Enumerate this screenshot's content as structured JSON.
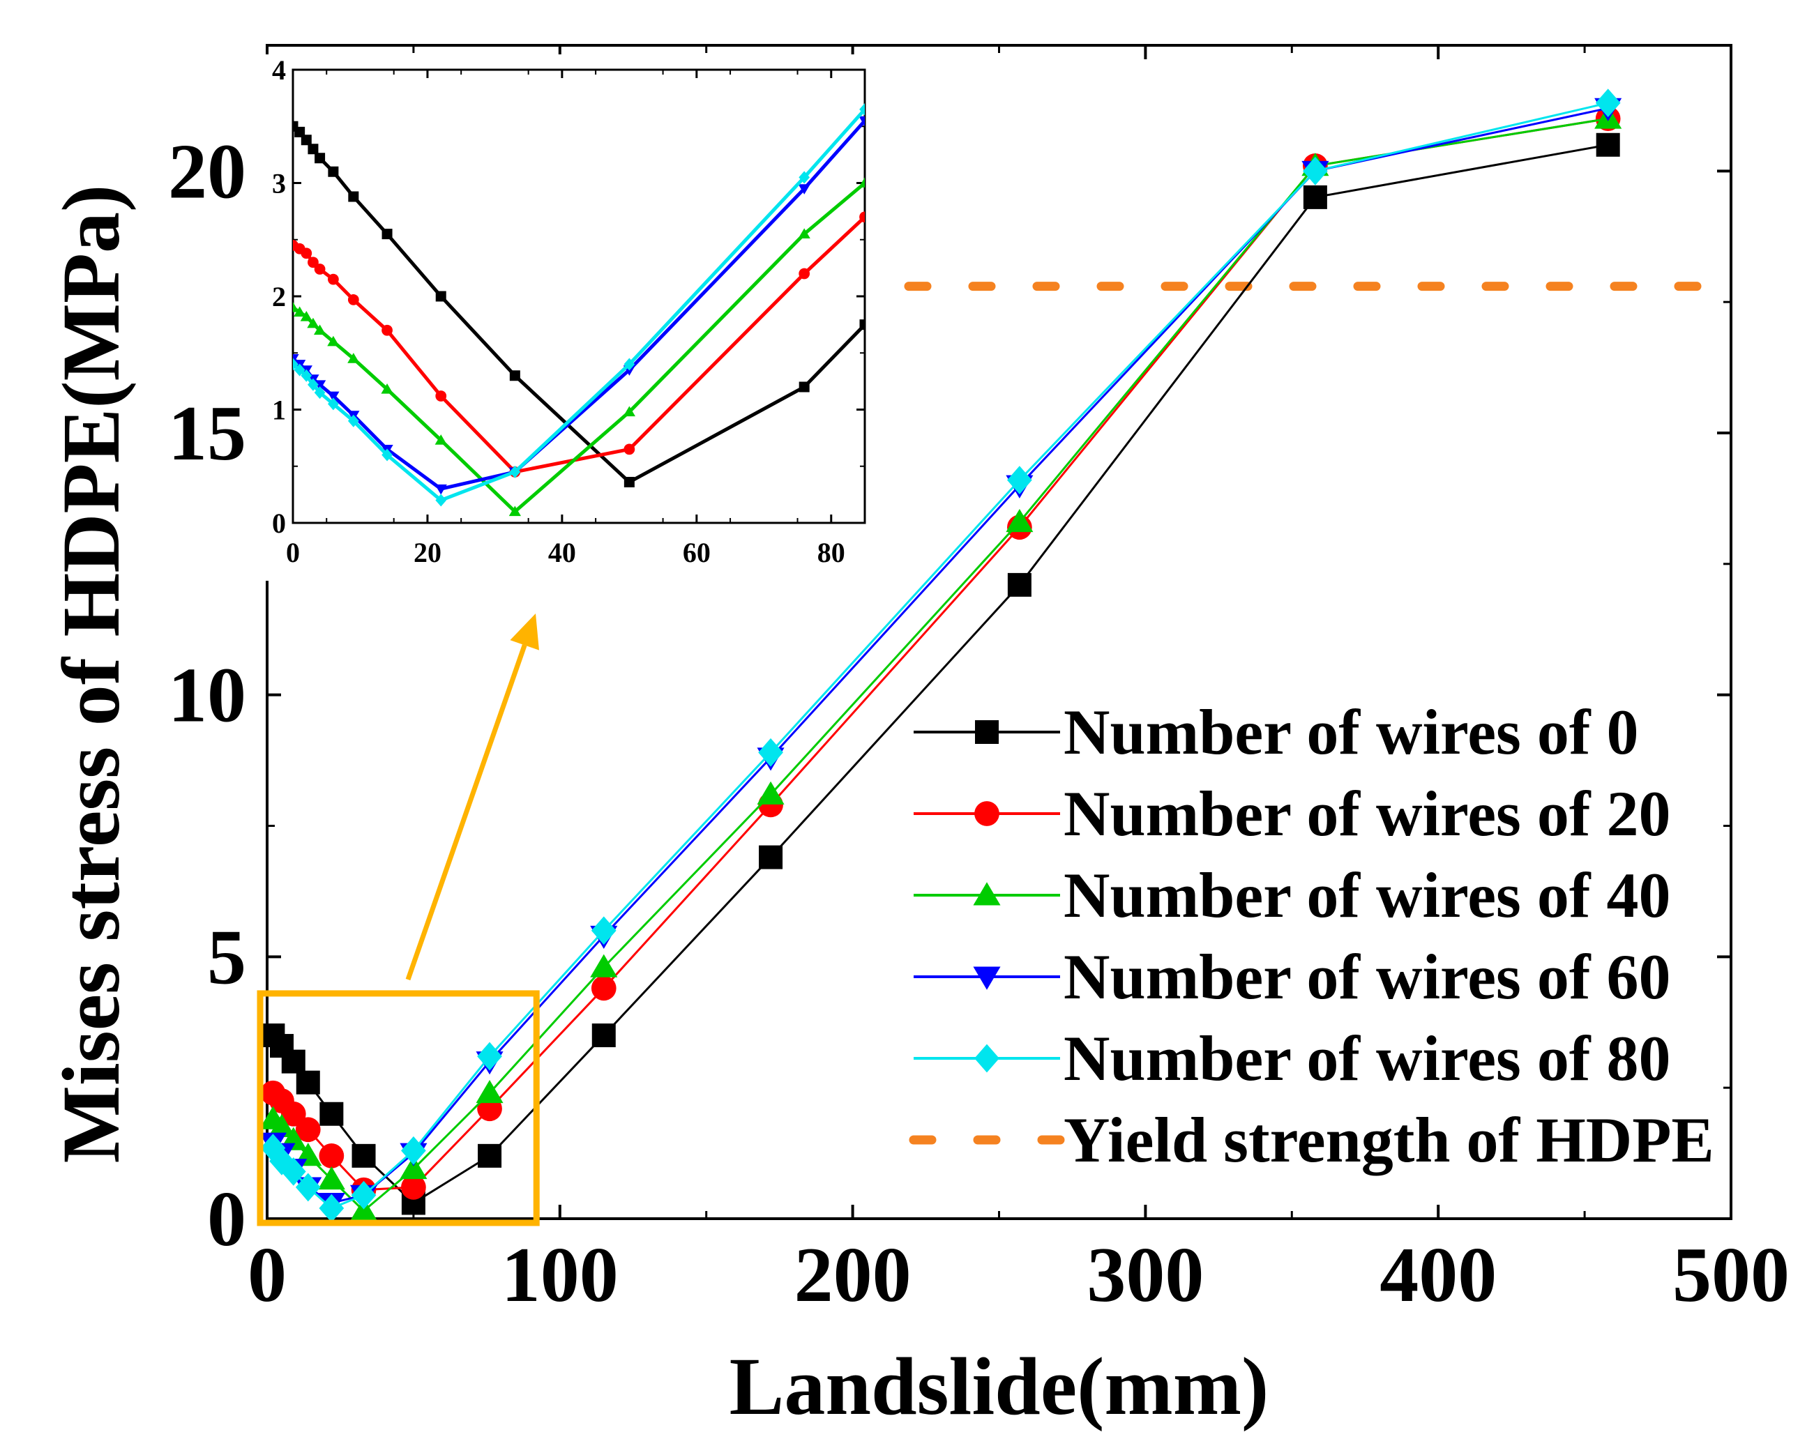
{
  "chart_data": [
    {
      "id": "main",
      "type": "line",
      "title": "",
      "xlabel": "Landslide(mm)",
      "ylabel": "Mises stress of HDPE(MPa)",
      "xlim": [
        0,
        500
      ],
      "ylim": [
        0,
        22.4
      ],
      "xticks": [
        0,
        100,
        200,
        300,
        400,
        500
      ],
      "yticks": [
        0,
        5,
        10,
        15,
        20
      ],
      "xtick_labels": [
        "0",
        "100",
        "200",
        "300",
        "400",
        "500"
      ],
      "ytick_labels": [
        "0",
        "5",
        "10",
        "15",
        "20"
      ],
      "legend_position": "center-right",
      "series": [
        {
          "name": "Number of wires of 0",
          "color": "#000000",
          "marker": "square",
          "x": [
            2,
            5,
            9,
            14,
            22,
            33,
            50,
            76,
            115,
            172,
            257,
            358,
            458
          ],
          "y": [
            3.5,
            3.3,
            3.0,
            2.6,
            2.0,
            1.2,
            0.3,
            1.2,
            3.5,
            6.9,
            12.1,
            19.5,
            20.5
          ]
        },
        {
          "name": "Number of wires of 20",
          "color": "#ff0000",
          "marker": "circle",
          "x": [
            2,
            5,
            9,
            14,
            22,
            33,
            50,
            76,
            115,
            172,
            257,
            358,
            458
          ],
          "y": [
            2.4,
            2.25,
            2.0,
            1.7,
            1.2,
            0.55,
            0.6,
            2.1,
            4.4,
            7.9,
            13.2,
            20.1,
            21.0
          ]
        },
        {
          "name": "Number of wires of 40",
          "color": "#00cc00",
          "marker": "triangle-up",
          "x": [
            2,
            5,
            9,
            14,
            22,
            33,
            50,
            76,
            115,
            172,
            257,
            358,
            458
          ],
          "y": [
            1.9,
            1.75,
            1.5,
            1.2,
            0.75,
            0.15,
            0.95,
            2.4,
            4.8,
            8.1,
            13.3,
            20.1,
            21.0
          ]
        },
        {
          "name": "Number of wires of 60",
          "color": "#0000ff",
          "marker": "triangle-down",
          "x": [
            2,
            5,
            9,
            14,
            22,
            33,
            50,
            76,
            115,
            172,
            257,
            358,
            458
          ],
          "y": [
            1.45,
            1.25,
            0.95,
            0.6,
            0.3,
            0.45,
            1.25,
            3.0,
            5.4,
            8.8,
            14.0,
            20.0,
            21.2
          ]
        },
        {
          "name": "Number of wires of 80",
          "color": "#00e5ee",
          "marker": "diamond",
          "x": [
            2,
            5,
            9,
            14,
            22,
            33,
            50,
            76,
            115,
            172,
            257,
            358,
            458
          ],
          "y": [
            1.35,
            1.1,
            0.9,
            0.6,
            0.2,
            0.45,
            1.3,
            3.1,
            5.5,
            8.9,
            14.1,
            20.0,
            21.3
          ]
        }
      ],
      "reference_lines": [
        {
          "name": "Yield strength of HDPE",
          "color": "#f58220",
          "style": "dashed",
          "y": 17.8
        }
      ],
      "annotations": [
        {
          "type": "highlight-box",
          "color": "#ffb300",
          "x_range": [
            0,
            92
          ],
          "y_range": [
            0,
            4.3
          ],
          "description": "region enlarged in inset"
        }
      ]
    },
    {
      "id": "inset",
      "type": "line",
      "title": "",
      "xlabel": "",
      "ylabel": "",
      "xlim": [
        0,
        85
      ],
      "ylim": [
        0,
        4
      ],
      "xticks": [
        0,
        20,
        40,
        60,
        80
      ],
      "yticks": [
        0,
        1,
        2,
        3,
        4
      ],
      "xtick_labels": [
        "0",
        "20",
        "40",
        "60",
        "80"
      ],
      "ytick_labels": [
        "0",
        "1",
        "2",
        "3",
        "4"
      ],
      "series": [
        {
          "name": "Number of wires of 0",
          "color": "#000000",
          "x": [
            0,
            1,
            2,
            3,
            4,
            6,
            9,
            14,
            22,
            33,
            50,
            76,
            85
          ],
          "y": [
            3.5,
            3.45,
            3.38,
            3.3,
            3.22,
            3.1,
            2.88,
            2.55,
            2.0,
            1.3,
            0.36,
            1.2,
            1.75
          ]
        },
        {
          "name": "Number of wires of 20",
          "color": "#ff0000",
          "x": [
            0,
            1,
            2,
            3,
            4,
            6,
            9,
            14,
            22,
            33,
            50,
            76,
            85
          ],
          "y": [
            2.45,
            2.42,
            2.38,
            2.3,
            2.24,
            2.15,
            1.97,
            1.7,
            1.12,
            0.45,
            0.65,
            2.2,
            2.7
          ]
        },
        {
          "name": "Number of wires of 40",
          "color": "#00cc00",
          "x": [
            0,
            1,
            2,
            3,
            4,
            6,
            9,
            14,
            22,
            33,
            50,
            76,
            85
          ],
          "y": [
            1.9,
            1.86,
            1.82,
            1.76,
            1.7,
            1.6,
            1.45,
            1.18,
            0.73,
            0.1,
            0.98,
            2.55,
            3.0
          ]
        },
        {
          "name": "Number of wires of 60",
          "color": "#0000ff",
          "x": [
            0,
            1,
            2,
            3,
            4,
            6,
            9,
            14,
            22,
            33,
            50,
            76,
            85
          ],
          "y": [
            1.45,
            1.4,
            1.35,
            1.27,
            1.22,
            1.12,
            0.95,
            0.65,
            0.3,
            0.45,
            1.35,
            2.95,
            3.55
          ]
        },
        {
          "name": "Number of wires of 80",
          "color": "#00e5ee",
          "x": [
            0,
            1,
            2,
            3,
            4,
            6,
            9,
            14,
            22,
            33,
            50,
            76,
            85
          ],
          "y": [
            1.4,
            1.35,
            1.3,
            1.22,
            1.15,
            1.05,
            0.9,
            0.6,
            0.2,
            0.45,
            1.4,
            3.05,
            3.65
          ]
        }
      ]
    }
  ]
}
